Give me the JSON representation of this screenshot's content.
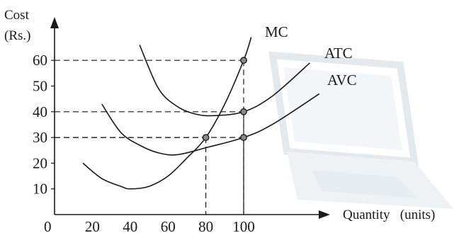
{
  "chart_data": {
    "type": "line",
    "ylabel_line1": "Cost",
    "ylabel_line2": "(Rs.)",
    "xlabel": "Quantity   (units)",
    "origin_label": "0",
    "xlim": [
      0,
      155
    ],
    "ylim": [
      0,
      67
    ],
    "x_ticks": [
      {
        "value": 20,
        "label": "20"
      },
      {
        "value": 40,
        "label": "40"
      },
      {
        "value": 60,
        "label": "60"
      },
      {
        "value": 80,
        "label": "80"
      },
      {
        "value": 100,
        "label": "100"
      }
    ],
    "y_ticks": [
      {
        "value": 10,
        "label": "10"
      },
      {
        "value": 20,
        "label": "20"
      },
      {
        "value": 30,
        "label": "30"
      },
      {
        "value": 40,
        "label": "40"
      },
      {
        "value": 50,
        "label": "50"
      },
      {
        "value": 60,
        "label": "60"
      }
    ],
    "series": [
      {
        "name": "MC",
        "x": [
          15,
          25,
          35,
          40,
          50,
          60,
          70,
          80,
          90,
          100,
          104
        ],
        "y": [
          20,
          14,
          11,
          10,
          11,
          15,
          22,
          30,
          43,
          60,
          69
        ]
      },
      {
        "name": "ATC",
        "x": [
          45,
          55,
          65,
          75,
          85,
          100,
          115,
          135
        ],
        "y": [
          66,
          49,
          42,
          39,
          38.5,
          40,
          46,
          59
        ]
      },
      {
        "name": "AVC",
        "x": [
          25,
          35,
          45,
          55,
          65,
          80,
          100,
          115,
          140
        ],
        "y": [
          43,
          32,
          27,
          24,
          23.3,
          26,
          30,
          35,
          47
        ]
      }
    ],
    "marked_points": [
      {
        "x": 80,
        "y": 30
      },
      {
        "x": 100,
        "y": 30
      },
      {
        "x": 100,
        "y": 40
      },
      {
        "x": 100,
        "y": 60
      }
    ],
    "guide_lines": [
      {
        "x": 80,
        "y": 30
      },
      {
        "x": 100,
        "y": 30
      },
      {
        "x": 100,
        "y": 40
      },
      {
        "x": 100,
        "y": 60
      }
    ],
    "colors": {
      "ink": "#1a1a1a",
      "point_fill": "#8a8a8a",
      "watermark": "#e4e9ee"
    }
  }
}
